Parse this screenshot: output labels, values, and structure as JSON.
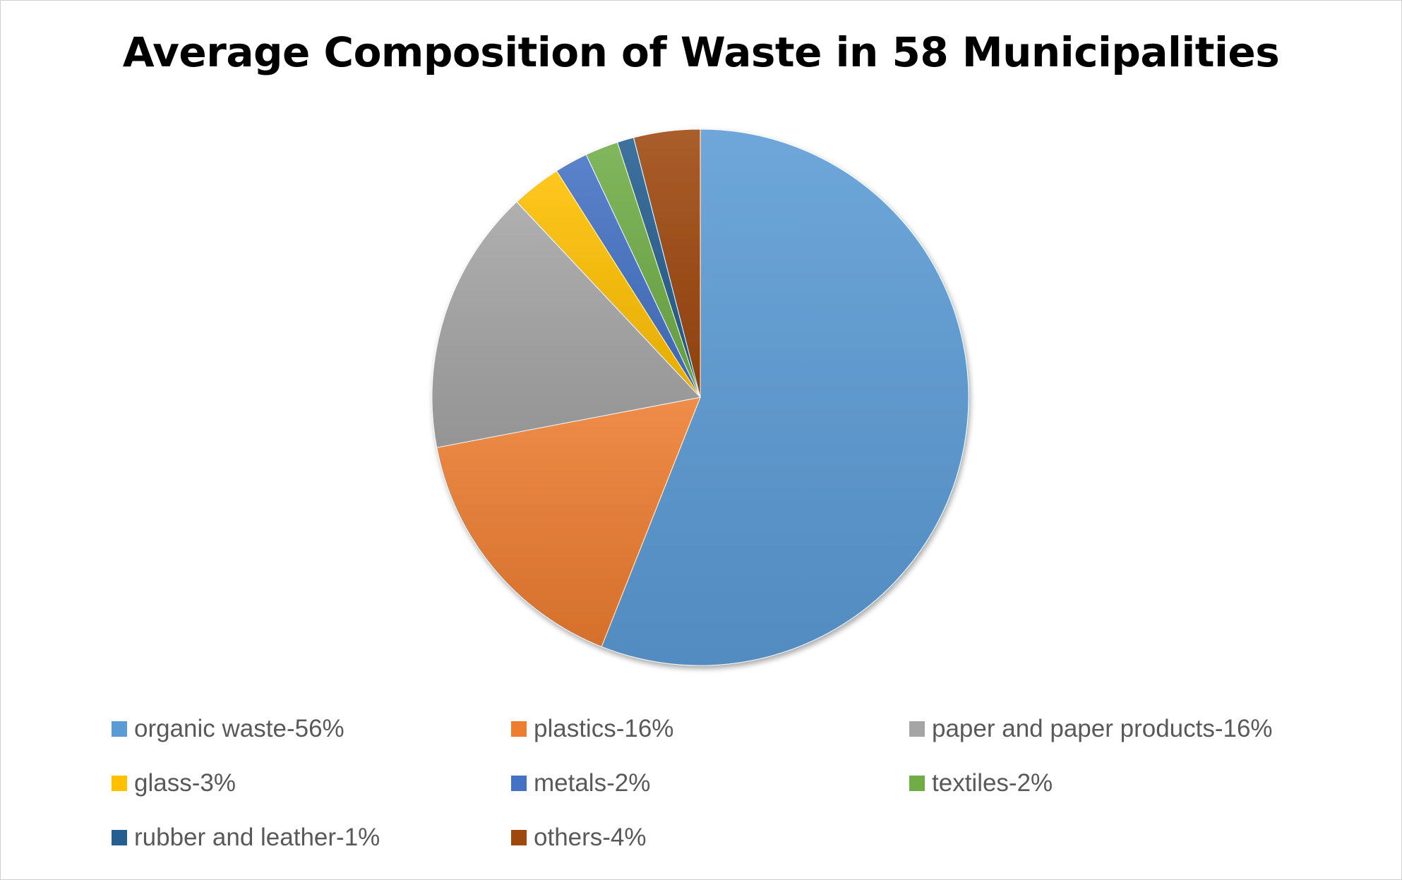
{
  "chart_data": {
    "type": "pie",
    "title": "Average Composition of Waste in 58 Municipalities",
    "start_angle_deg": 0,
    "direction": "clockwise",
    "legend_position": "bottom",
    "categories": [
      "organic waste-56%",
      "plastics-16%",
      "paper and paper products-16%",
      "glass-3%",
      "metals-2%",
      "textiles-2%",
      "rubber and leather-1%",
      "others-4%"
    ],
    "values": [
      56,
      16,
      16,
      3,
      2,
      2,
      1,
      4
    ],
    "colors": [
      "#5B9BD5",
      "#ED7D31",
      "#A5A5A5",
      "#FFC000",
      "#4472C4",
      "#70AD47",
      "#255E91",
      "#9E480E"
    ]
  }
}
